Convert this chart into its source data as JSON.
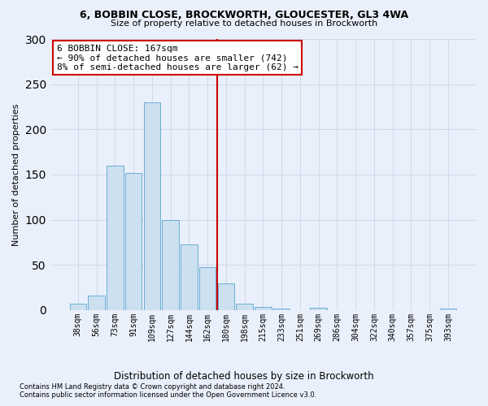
{
  "title1": "6, BOBBIN CLOSE, BROCKWORTH, GLOUCESTER, GL3 4WA",
  "title2": "Size of property relative to detached houses in Brockworth",
  "xlabel": "Distribution of detached houses by size in Brockworth",
  "ylabel": "Number of detached properties",
  "footnote1": "Contains HM Land Registry data © Crown copyright and database right 2024.",
  "footnote2": "Contains public sector information licensed under the Open Government Licence v3.0.",
  "categories": [
    "38sqm",
    "56sqm",
    "73sqm",
    "91sqm",
    "109sqm",
    "127sqm",
    "144sqm",
    "162sqm",
    "180sqm",
    "198sqm",
    "215sqm",
    "233sqm",
    "251sqm",
    "269sqm",
    "286sqm",
    "304sqm",
    "322sqm",
    "340sqm",
    "357sqm",
    "375sqm",
    "393sqm"
  ],
  "values": [
    7,
    16,
    160,
    152,
    230,
    100,
    73,
    48,
    30,
    7,
    4,
    2,
    0,
    3,
    0,
    0,
    0,
    0,
    0,
    0,
    2
  ],
  "bar_color": "#cce0f0",
  "bar_edge_color": "#6aaed6",
  "grid_color": "#d0d8e8",
  "background_color": "#eaf0fb",
  "vline_x": 7.5,
  "vline_color": "#cc0000",
  "annotation_line1": "6 BOBBIN CLOSE: 167sqm",
  "annotation_line2": "← 90% of detached houses are smaller (742)",
  "annotation_line3": "8% of semi-detached houses are larger (62) →",
  "annotation_box_color": "#ffffff",
  "annotation_box_edge_color": "#cc0000",
  "ylim": [
    0,
    300
  ],
  "yticks": [
    0,
    50,
    100,
    150,
    200,
    250,
    300
  ]
}
